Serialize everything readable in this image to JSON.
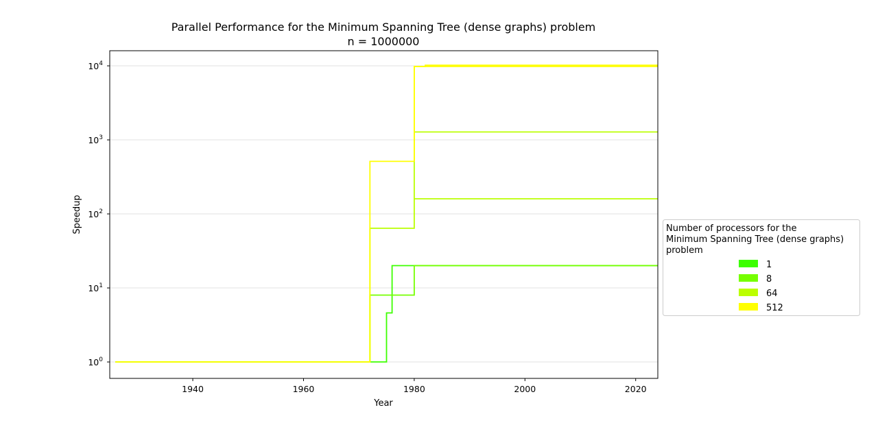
{
  "chart_data": {
    "type": "line",
    "step": true,
    "title": "Parallel Performance for the Minimum Spanning Tree (dense graphs) problem",
    "subtitle": "n = 1000000",
    "xlabel": "Year",
    "ylabel": "Speedup",
    "xlim": [
      1925,
      2024
    ],
    "ylim": [
      0.6,
      16000
    ],
    "yscale": "log",
    "x_ticks": [
      1940,
      1960,
      1980,
      2000,
      2020
    ],
    "y_ticks": [
      {
        "value": 1,
        "base": "10",
        "exp": "0"
      },
      {
        "value": 10,
        "base": "10",
        "exp": "1"
      },
      {
        "value": 100,
        "base": "10",
        "exp": "2"
      },
      {
        "value": 1000,
        "base": "10",
        "exp": "3"
      },
      {
        "value": 10000,
        "base": "10",
        "exp": "4"
      }
    ],
    "grid": "horizontal",
    "legend": {
      "title_lines": [
        "Number of processors for the",
        "Minimum Spanning Tree (dense graphs)",
        "problem"
      ],
      "placement": "right"
    },
    "series": [
      {
        "name": "1",
        "color": "#3cff00",
        "x": [
          1926,
          1975,
          1975,
          1976,
          1976,
          2024
        ],
        "y": [
          1,
          1,
          4.6,
          4.6,
          20,
          20
        ]
      },
      {
        "name": "8",
        "color": "#76ff00",
        "x": [
          1926,
          1972,
          1972,
          1980,
          1980,
          2024
        ],
        "y": [
          1,
          1,
          8,
          8,
          20,
          20
        ]
      },
      {
        "name": "64",
        "color": "#bbff00",
        "x": [
          1926,
          1972,
          1972,
          1980,
          1980,
          2024
        ],
        "y": [
          1,
          1,
          64,
          64,
          160,
          160
        ]
      },
      {
        "name": "512",
        "color": "#ffff00",
        "x": [
          1926,
          1972,
          1972,
          1980,
          1980,
          1982,
          1982,
          2024
        ],
        "y": [
          1,
          1,
          512,
          512,
          9800,
          9800,
          10200,
          10200
        ]
      }
    ],
    "extra_lines": [
      {
        "color": "#bbff00",
        "x": [
          1980,
          1980,
          2024
        ],
        "y": [
          160,
          1280,
          1280
        ]
      },
      {
        "color": "#ffff00",
        "x": [
          1980,
          1980,
          2024
        ],
        "y": [
          1280,
          9800,
          9800
        ]
      }
    ]
  }
}
